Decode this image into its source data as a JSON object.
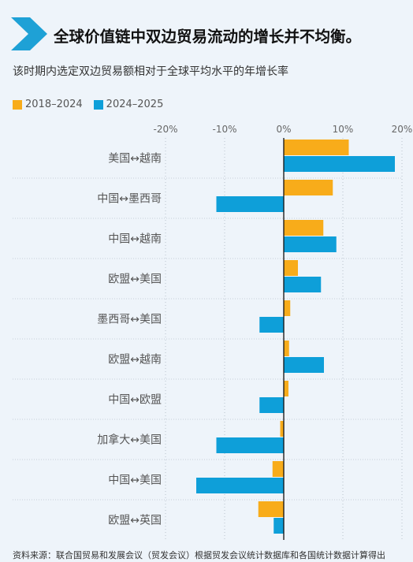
{
  "header": {
    "title": "全球价值链中双边贸易流动的增长并不均衡。",
    "subtitle": "该时期内选定双边贸易额相对于全球平均水平的年增长率"
  },
  "footer": {
    "source": "资料来源：联合国贸易和发展会议（贸发会议）根据贸发会议统计数据库和各国统计数据计算得出"
  },
  "colors": {
    "accent": "#1ea1d6",
    "orange": "#f8ac1a",
    "blue": "#0e9fd9"
  },
  "chart_data": {
    "type": "bar",
    "orientation": "horizontal",
    "xlim": [
      -20,
      20
    ],
    "ticks": [
      "-20%",
      "-10%",
      "0%",
      "10%",
      "20%"
    ],
    "tick_values": [
      -20,
      -10,
      0,
      10,
      20
    ],
    "legend_position": "top-left",
    "categories": [
      "美国↔越南",
      "中国↔墨西哥",
      "中国↔越南",
      "欧盟↔美国",
      "墨西哥↔美国",
      "欧盟↔越南",
      "中国↔欧盟",
      "加拿大↔美国",
      "中国↔美国",
      "欧盟↔英国"
    ],
    "series": [
      {
        "name": "2018–2024",
        "color": "#f8ac1a",
        "values": [
          11,
          8.3,
          6.7,
          2.4,
          1.1,
          0.9,
          0.8,
          -0.6,
          -1.9,
          -4.3
        ]
      },
      {
        "name": "2024–2025",
        "color": "#0e9fd9",
        "values": [
          18.8,
          -11.4,
          8.9,
          6.3,
          -4.1,
          6.8,
          -4.1,
          -11.4,
          -14.8,
          -1.7
        ]
      }
    ]
  }
}
